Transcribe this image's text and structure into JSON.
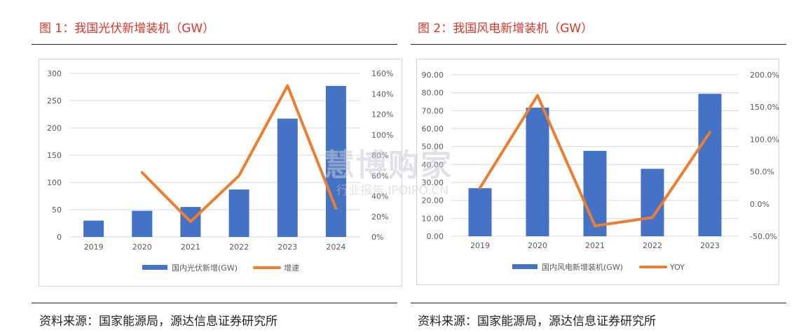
{
  "figures": [
    {
      "title": "图 1：我国光伏新增装机（GW）",
      "source": "资料来源：国家能源局，源达信息证券研究所"
    },
    {
      "title": "图 2：我国风电新增装机（GW）",
      "source": "资料来源：国家能源局，源达信息证券研究所"
    }
  ],
  "watermark": {
    "main": "慧博购家",
    "sub": "行业报告 IPOIPO.CN"
  },
  "colors": {
    "bar": "#4472c4",
    "line": "#ed7d31",
    "title": "#d9362b"
  },
  "chart_data": [
    {
      "type": "bar",
      "categories": [
        "2019",
        "2020",
        "2021",
        "2022",
        "2023",
        "2024"
      ],
      "series": [
        {
          "name": "国内光伏新增(GW)",
          "type": "bar",
          "axis": "left",
          "values": [
            30,
            48,
            55,
            87,
            217,
            277
          ]
        },
        {
          "name": "增速",
          "type": "line",
          "axis": "right",
          "values": [
            null,
            0.63,
            0.15,
            0.6,
            1.48,
            0.28
          ]
        }
      ],
      "y_left": {
        "min": 0,
        "max": 300,
        "step": 50,
        "tick_labels": [
          "0",
          "50",
          "100",
          "150",
          "200",
          "250",
          "300"
        ]
      },
      "y_right": {
        "min": 0,
        "max": 1.6,
        "step": 0.2,
        "tick_labels": [
          "0%",
          "20%",
          "40%",
          "60%",
          "80%",
          "100%",
          "120%",
          "140%",
          "160%"
        ]
      },
      "grid": true,
      "legend": "bottom"
    },
    {
      "type": "bar",
      "categories": [
        "2019",
        "2020",
        "2021",
        "2022",
        "2023"
      ],
      "series": [
        {
          "name": "国内风电新增装机(GW)",
          "type": "bar",
          "axis": "left",
          "values": [
            26.8,
            71.7,
            47.6,
            37.6,
            79.4
          ]
        },
        {
          "name": "YOY",
          "type": "line",
          "axis": "right",
          "values": [
            0.25,
            1.68,
            -0.34,
            -0.21,
            1.11
          ]
        }
      ],
      "y_left": {
        "min": 0,
        "max": 90,
        "step": 10,
        "tick_labels": [
          "0.00",
          "10.00",
          "20.00",
          "30.00",
          "40.00",
          "50.00",
          "60.00",
          "70.00",
          "80.00",
          "90.00"
        ]
      },
      "y_right": {
        "min": -0.5,
        "max": 2.0,
        "step": 0.5,
        "tick_labels": [
          "-50.0%",
          "0.0%",
          "50.0%",
          "100.0%",
          "150.0%",
          "200.0%"
        ]
      },
      "grid": true,
      "legend": "bottom"
    }
  ]
}
